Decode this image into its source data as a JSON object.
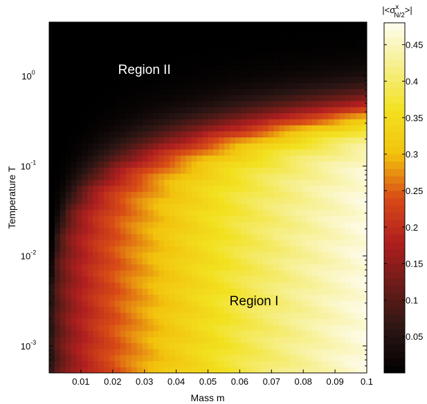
{
  "chart_data": {
    "type": "heatmap",
    "xlabel": "Mass m",
    "ylabel": "Temperature T",
    "colorbar_label": "|<σ",
    "colorbar_sup": "x",
    "colorbar_sub": "N/2",
    "colorbar_close": ">|",
    "xlim": [
      0,
      0.1
    ],
    "ylim_log10": [
      -3.3,
      0.6
    ],
    "y_scale": "log",
    "x_ticks": [
      "0.01",
      "0.02",
      "0.03",
      "0.04",
      "0.05",
      "0.06",
      "0.07",
      "0.08",
      "0.09",
      "0.1"
    ],
    "x_tick_values": [
      0.01,
      0.02,
      0.03,
      0.04,
      0.05,
      0.06,
      0.07,
      0.08,
      0.09,
      0.1
    ],
    "y_ticks": [
      {
        "base": "10",
        "exp": "0",
        "value": 1
      },
      {
        "base": "10",
        "exp": "-1",
        "value": 0.1
      },
      {
        "base": "10",
        "exp": "-2",
        "value": 0.01
      },
      {
        "base": "10",
        "exp": "-3",
        "value": 0.001
      }
    ],
    "colorbar_range": [
      0,
      0.48
    ],
    "colorbar_ticks": [
      "0.05",
      "0.1",
      "0.15",
      "0.2",
      "0.25",
      "0.3",
      "0.35",
      "0.4",
      "0.45"
    ],
    "colorbar_tick_values": [
      0.05,
      0.1,
      0.15,
      0.2,
      0.25,
      0.3,
      0.35,
      0.4,
      0.45
    ],
    "colormap": [
      "#000000",
      "#2a1614",
      "#6a1c18",
      "#b01f1f",
      "#d84b16",
      "#f2c20d",
      "#f2e11f",
      "#f6ef8a",
      "#fefcf0"
    ],
    "annotations": [
      {
        "text": "Region II",
        "x": 0.03,
        "t": 1.2,
        "color": "#ffffff"
      },
      {
        "text": "Region I",
        "x": 0.0645,
        "t": 0.0032,
        "color": "#000000"
      }
    ]
  }
}
